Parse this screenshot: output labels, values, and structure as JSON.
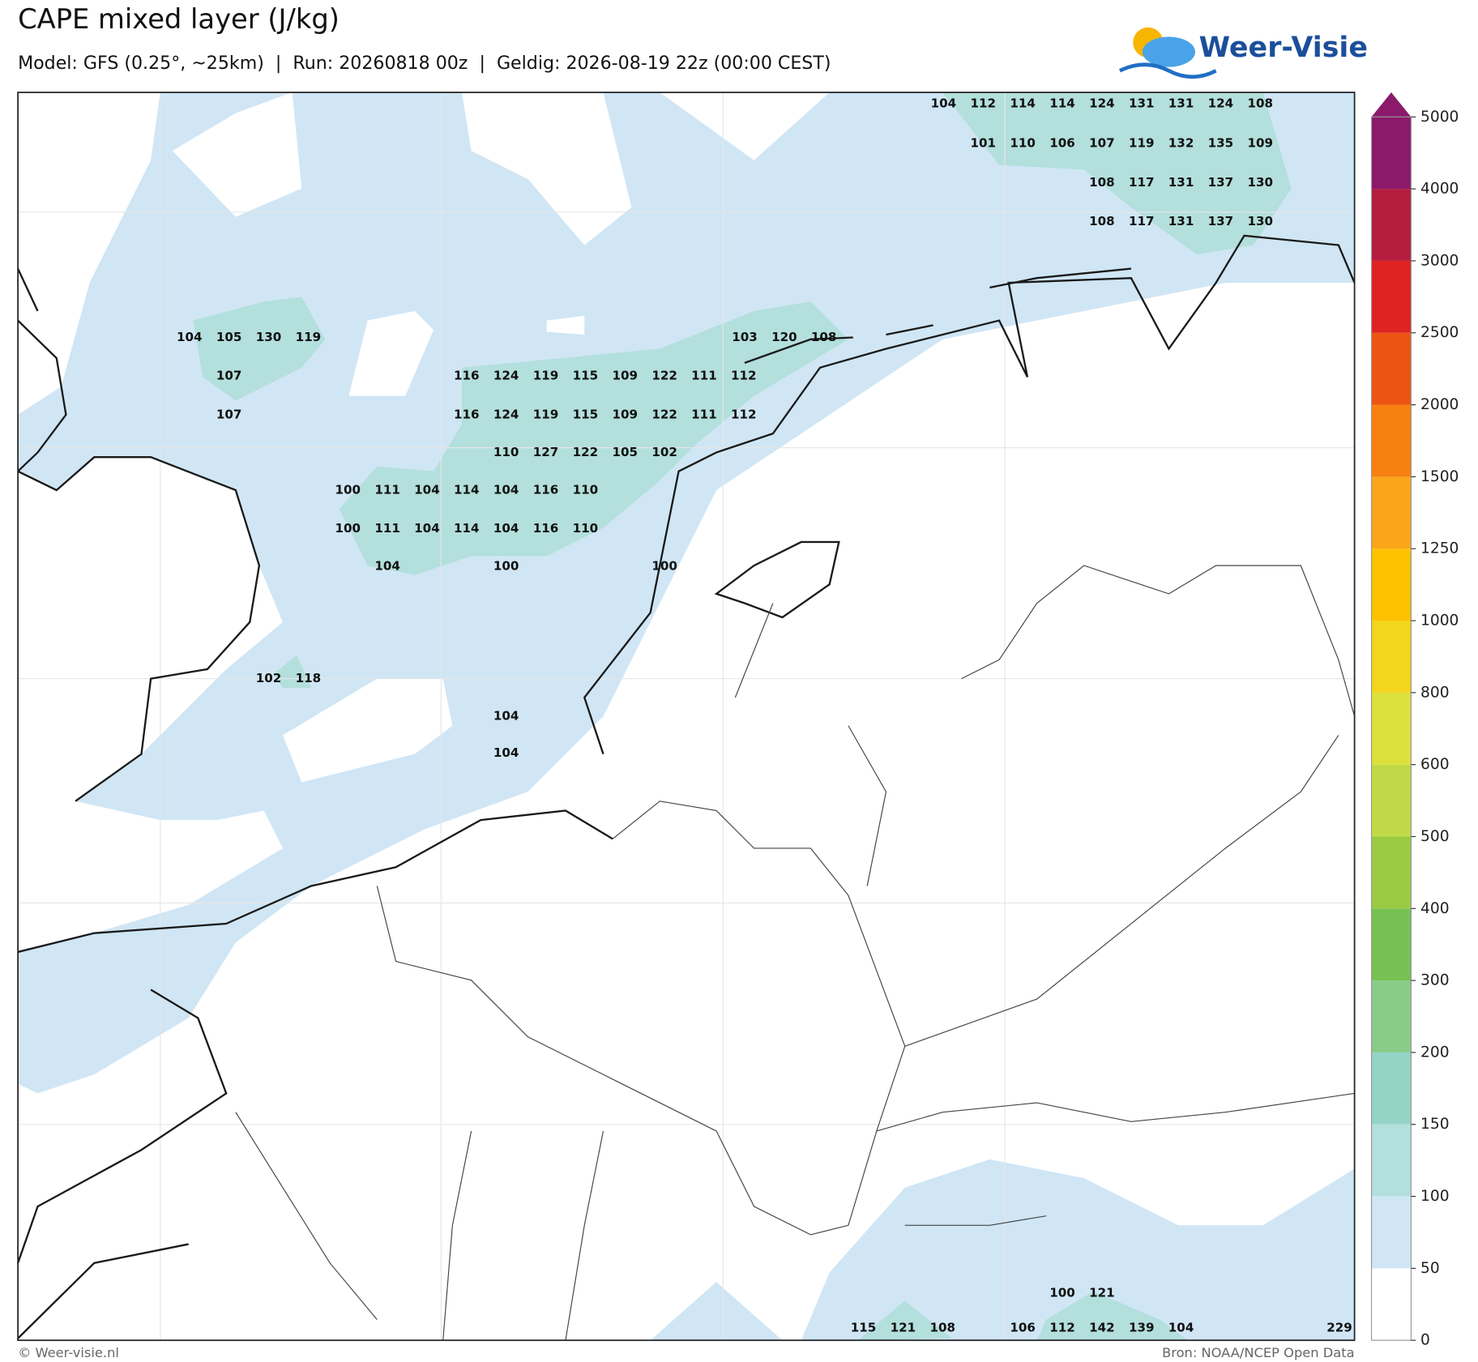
{
  "header": {
    "title": "CAPE mixed layer (J/kg)",
    "subtitle": "Model: GFS (0.25°, ~25km)  |  Run: 20260818 00z  |  Geldig: 2026-08-19 22z (00:00 CEST)",
    "logo": "Weer-Visie"
  },
  "footer": {
    "left": "© Weer-visie.nl",
    "right": "Bron: NOAA/NCEP Open Data"
  },
  "colorbar": {
    "ticks": [
      0,
      50,
      100,
      150,
      200,
      300,
      400,
      500,
      600,
      800,
      1000,
      1250,
      1500,
      2000,
      2500,
      3000,
      4000,
      5000
    ],
    "colors": [
      "#ffffff",
      "#d0e6f5",
      "#b3dfdc",
      "#94d4c6",
      "#8acb8a",
      "#76c152",
      "#9acb42",
      "#c1d946",
      "#dde03b",
      "#f2d51c",
      "#fcc200",
      "#fba51b",
      "#f7800f",
      "#ec5412",
      "#df2222",
      "#b41d3e",
      "#8b1a6b"
    ]
  },
  "map_labels": [
    [
      104,
      112,
      114,
      114,
      124,
      131,
      131,
      124,
      108
    ],
    [
      101,
      110,
      106,
      107,
      119,
      132,
      135,
      109
    ],
    [
      108,
      117,
      131,
      137,
      130
    ],
    [
      108,
      117,
      131,
      137,
      130
    ],
    [
      104,
      105,
      130,
      119,
      103,
      120,
      108
    ],
    [
      107,
      116,
      124,
      119,
      115,
      109,
      122,
      111,
      112
    ],
    [
      107,
      116,
      124,
      119,
      115,
      109,
      122,
      111,
      112
    ],
    [
      110,
      127,
      122,
      105,
      102
    ],
    [
      100,
      111,
      104,
      114,
      104,
      116,
      110
    ],
    [
      100,
      111,
      104,
      114,
      104,
      116,
      110
    ],
    [
      104,
      100,
      100
    ],
    [
      102,
      118
    ],
    [
      104
    ],
    [
      104
    ],
    [
      100,
      121
    ],
    [
      115,
      121,
      108,
      106,
      112,
      142,
      139,
      104,
      229
    ]
  ]
}
